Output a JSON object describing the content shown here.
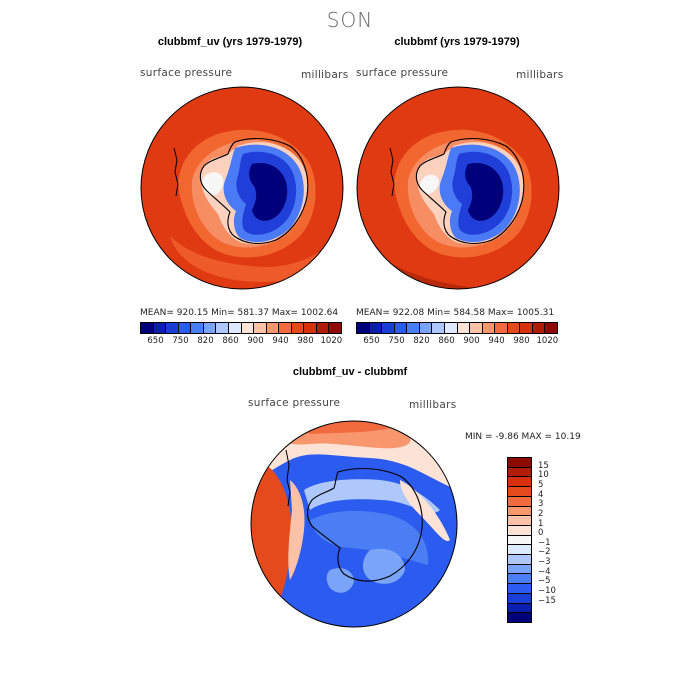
{
  "season": "SON",
  "panels": [
    {
      "title": "clubbmf_uv (yrs 1979-1979)",
      "left_label": "surface pressure",
      "right_label": "millibars",
      "stats": "MEAN= 920.15   Min= 581.37   Max= 1002.64",
      "mean": 920.15,
      "min": 581.37,
      "max": 1002.64
    },
    {
      "title": "clubbmf (yrs 1979-1979)",
      "left_label": "surface pressure",
      "right_label": "millibars",
      "stats": "MEAN= 922.08   Min= 584.58   Max= 1005.31",
      "mean": 922.08,
      "min": 584.58,
      "max": 1005.31
    }
  ],
  "colorbar": {
    "tick_labels": [
      "650",
      "750",
      "820",
      "860",
      "900",
      "940",
      "980",
      "1020"
    ],
    "colors": [
      "#00007a",
      "#0a1fb0",
      "#1a3fd6",
      "#2c5cef",
      "#4b7ef5",
      "#7aa4f8",
      "#aec8fb",
      "#dde9fd",
      "#fde3d6",
      "#fcc1a6",
      "#f8966e",
      "#f26b3f",
      "#e54a1d",
      "#d6300d",
      "#b01c05",
      "#8c0a00"
    ]
  },
  "diff_panel": {
    "title": "clubbmf_uv - clubbmf",
    "left_label": "surface pressure",
    "right_label": "millibars",
    "minmax": "MIN =   -9.86  MAX =   10.19",
    "min": -9.86,
    "max": 10.19
  },
  "diff_colorbar": {
    "tick_labels": [
      "15",
      "10",
      "5",
      "4",
      "3",
      "2",
      "1",
      "0",
      "−1",
      "−2",
      "−3",
      "−4",
      "−5",
      "−10",
      "−15"
    ],
    "colors": [
      "#8c0a00",
      "#b01c05",
      "#d6300d",
      "#e54a1d",
      "#f26b3f",
      "#f8966e",
      "#fcc1a6",
      "#fde3d6",
      "#f7f7f7",
      "#dde9fd",
      "#aec8fb",
      "#7aa4f8",
      "#4b7ef5",
      "#2c5cef",
      "#1a3fd6",
      "#0a1fb0",
      "#00007a"
    ]
  }
}
